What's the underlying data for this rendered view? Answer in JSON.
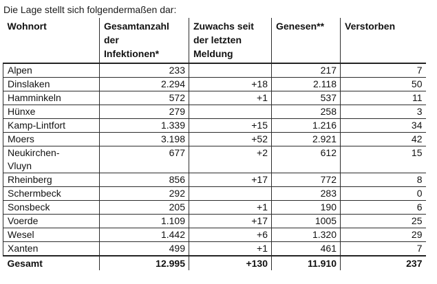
{
  "page": {
    "intro": "Die Lage stellt sich folgendermaßen dar:"
  },
  "table": {
    "columns": [
      {
        "label": "Wohnort"
      },
      {
        "label": "Gesamtanzahl\nder\nInfektionen*"
      },
      {
        "label": "Zuwachs seit\nder letzten\nMeldung"
      },
      {
        "label": "Genesen**"
      },
      {
        "label": "Verstorben"
      }
    ],
    "rows": [
      {
        "wohnort": "Alpen",
        "gesamtanzahl": "233",
        "zuwachs": "",
        "genesen": "217",
        "verstorben": "7"
      },
      {
        "wohnort": "Dinslaken",
        "gesamtanzahl": "2.294",
        "zuwachs": "+18",
        "genesen": "2.118",
        "verstorben": "50"
      },
      {
        "wohnort": "Hamminkeln",
        "gesamtanzahl": "572",
        "zuwachs": "+1",
        "genesen": "537",
        "verstorben": "11"
      },
      {
        "wohnort": "Hünxe",
        "gesamtanzahl": "279",
        "zuwachs": "",
        "genesen": "258",
        "verstorben": "3"
      },
      {
        "wohnort": "Kamp-Lintfort",
        "gesamtanzahl": "1.339",
        "zuwachs": "+15",
        "genesen": "1.216",
        "verstorben": "34"
      },
      {
        "wohnort": "Moers",
        "gesamtanzahl": "3.198",
        "zuwachs": "+52",
        "genesen": "2.921",
        "verstorben": "42"
      },
      {
        "wohnort": "Neukirchen-\nVluyn",
        "gesamtanzahl": "677",
        "zuwachs": "+2",
        "genesen": "612",
        "verstorben": "15"
      },
      {
        "wohnort": "Rheinberg",
        "gesamtanzahl": "856",
        "zuwachs": "+17",
        "genesen": "772",
        "verstorben": "8"
      },
      {
        "wohnort": "Schermbeck",
        "gesamtanzahl": "292",
        "zuwachs": "",
        "genesen": "283",
        "verstorben": "0"
      },
      {
        "wohnort": "Sonsbeck",
        "gesamtanzahl": "205",
        "zuwachs": "+1",
        "genesen": "190",
        "verstorben": "6"
      },
      {
        "wohnort": "Voerde",
        "gesamtanzahl": "1.109",
        "zuwachs": "+17",
        "genesen": "1005",
        "verstorben": "25"
      },
      {
        "wohnort": "Wesel",
        "gesamtanzahl": "1.442",
        "zuwachs": "+6",
        "genesen": "1.320",
        "verstorben": "29"
      },
      {
        "wohnort": "Xanten",
        "gesamtanzahl": "499",
        "zuwachs": "+1",
        "genesen": "461",
        "verstorben": "7"
      }
    ],
    "total": {
      "wohnort": "Gesamt",
      "gesamtanzahl": "12.995",
      "zuwachs": "+130",
      "genesen": "11.910",
      "verstorben": "237"
    }
  }
}
